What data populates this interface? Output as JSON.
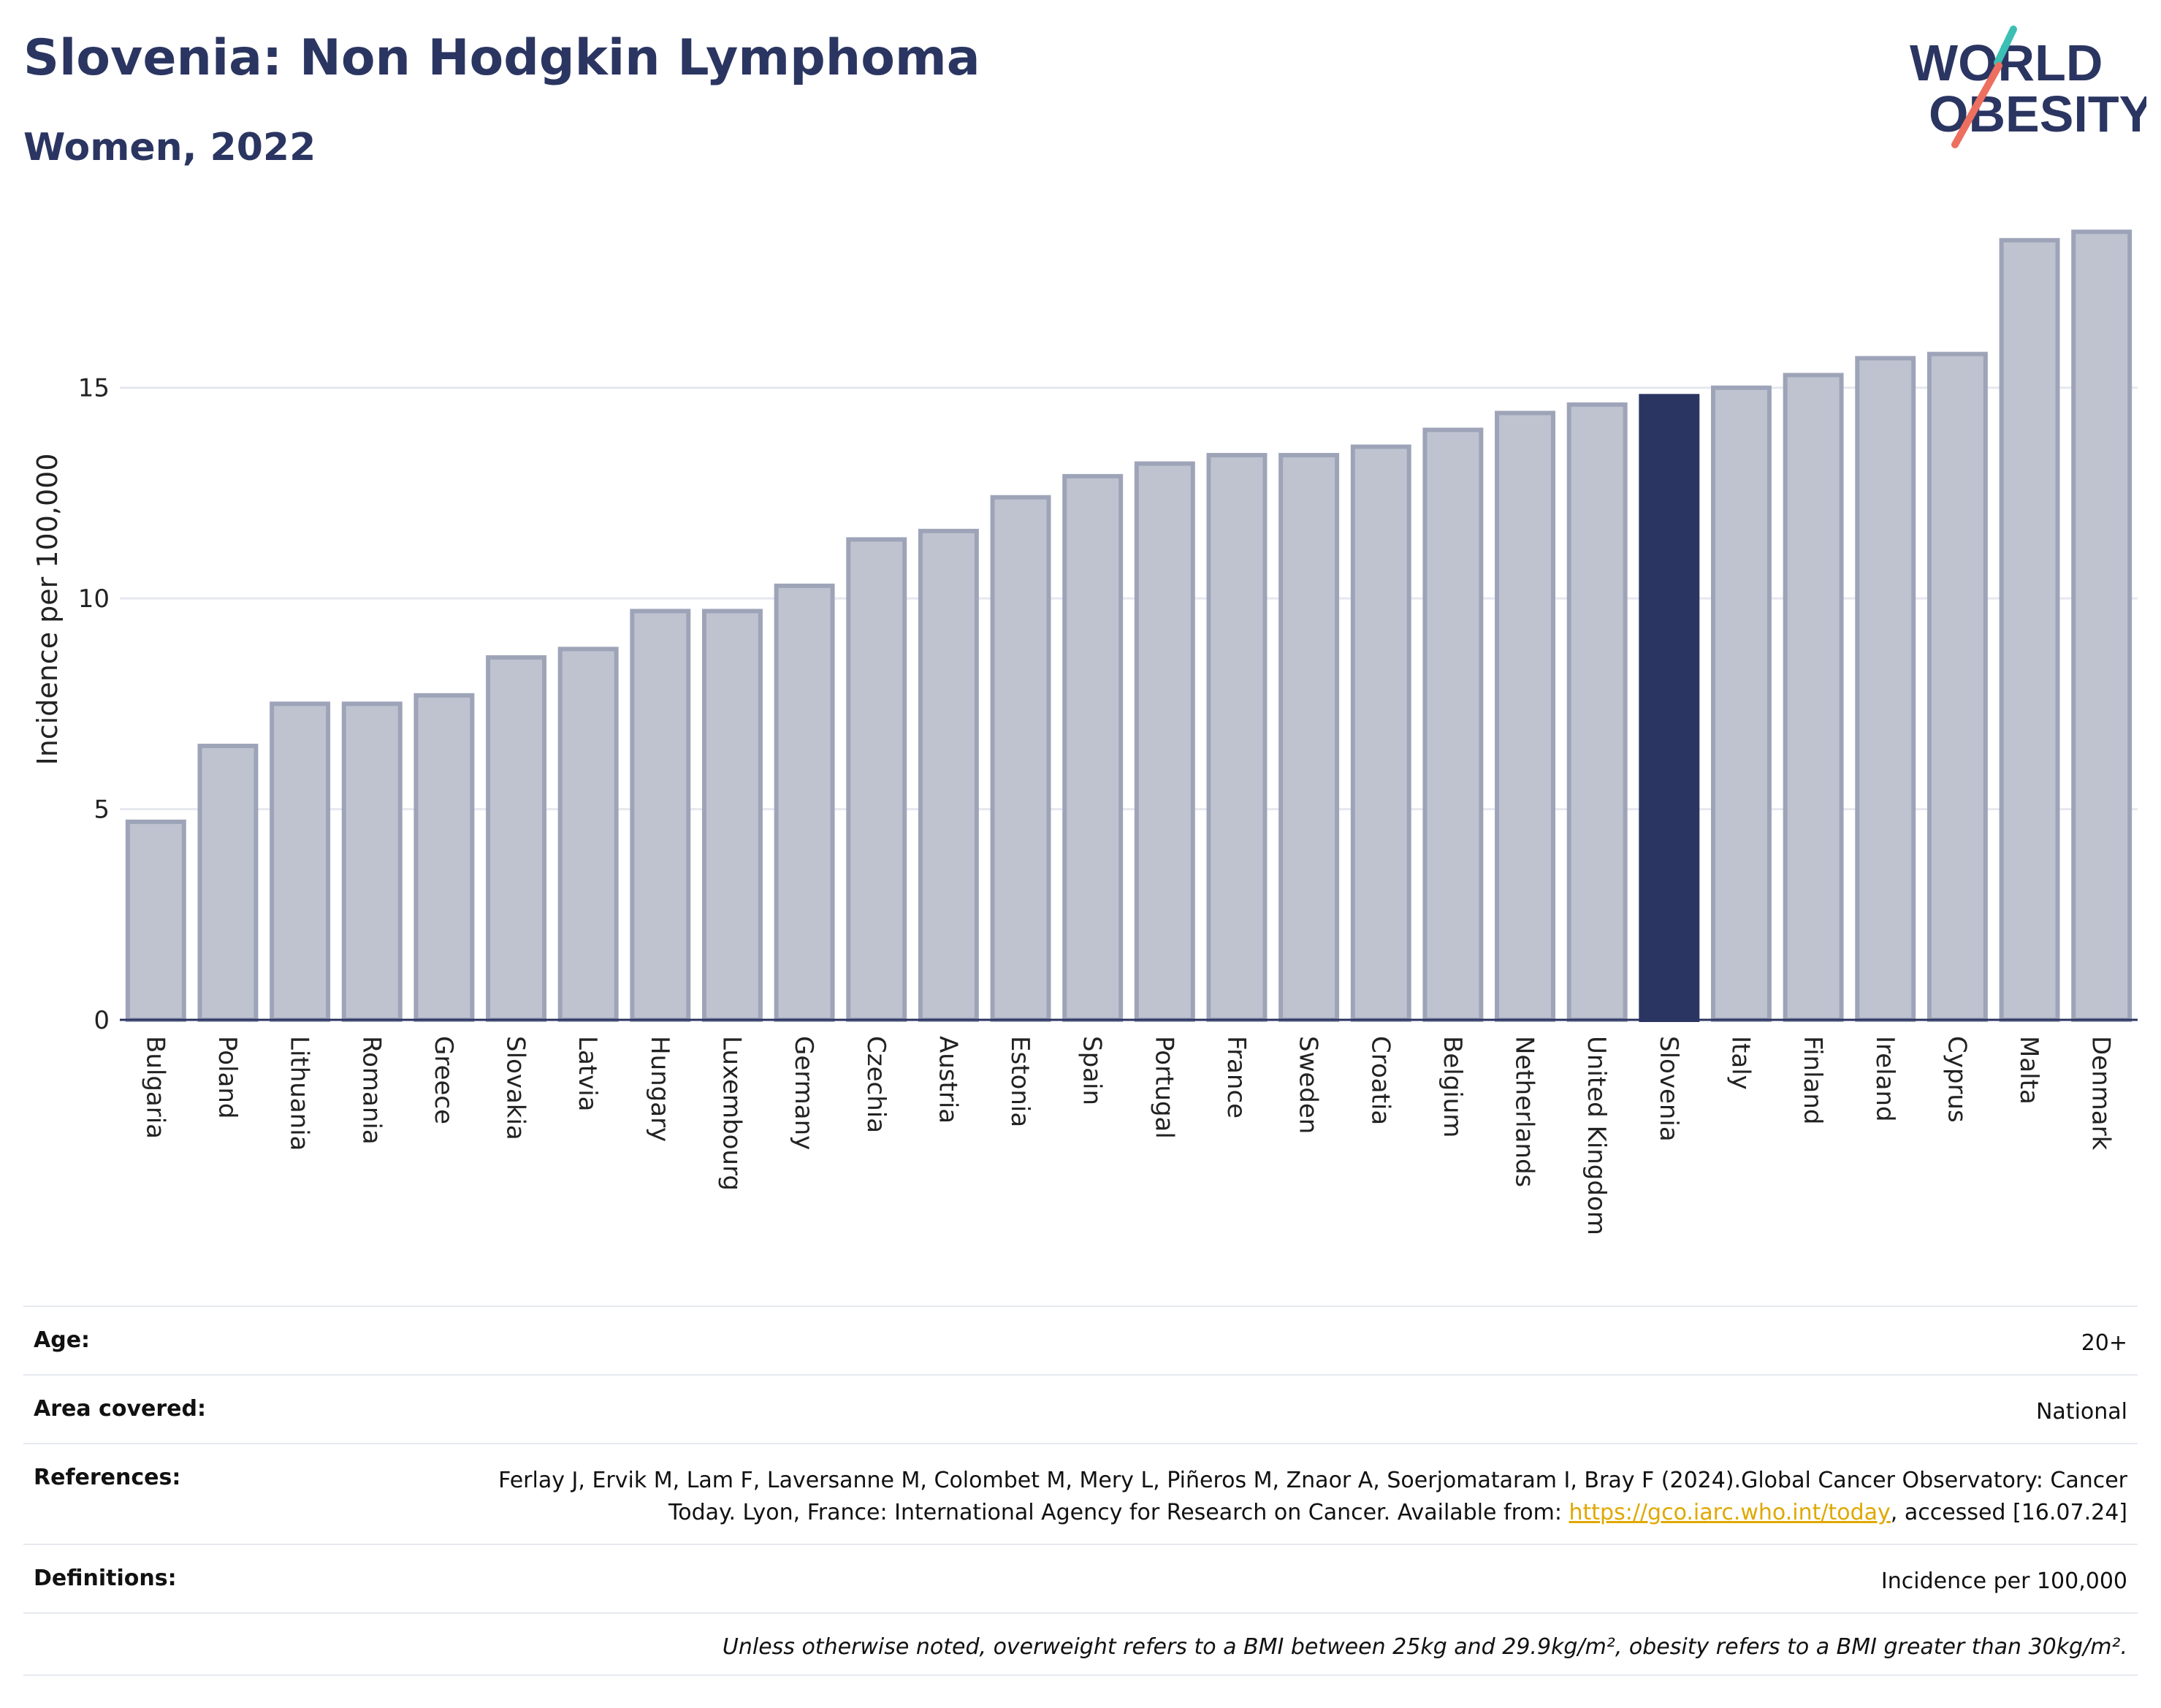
{
  "header": {
    "title": "Slovenia: Non Hodgkin Lymphoma",
    "subtitle": "Women, 2022"
  },
  "logo": {
    "line1": "WORLD",
    "line2": "OBESITY",
    "icon": "world-obesity-logo"
  },
  "colors": {
    "highlight": "#2b3561",
    "bar": "#bfc3d0",
    "bar_border": "#9ea4b8",
    "title": "#2b3561"
  },
  "chart_data": {
    "type": "bar",
    "categories": [
      "Bulgaria",
      "Poland",
      "Lithuania",
      "Romania",
      "Greece",
      "Slovakia",
      "Latvia",
      "Hungary",
      "Luxembourg",
      "Germany",
      "Czechia",
      "Austria",
      "Estonia",
      "Spain",
      "Portugal",
      "France",
      "Sweden",
      "Croatia",
      "Belgium",
      "Netherlands",
      "United Kingdom",
      "Slovenia",
      "Italy",
      "Finland",
      "Ireland",
      "Cyprus",
      "Malta",
      "Denmark"
    ],
    "values": [
      4.7,
      6.5,
      7.5,
      7.5,
      7.7,
      8.6,
      8.8,
      9.7,
      9.7,
      10.3,
      11.4,
      11.6,
      12.4,
      12.9,
      13.2,
      13.4,
      13.4,
      13.6,
      14.0,
      14.4,
      14.6,
      14.8,
      15.0,
      15.3,
      15.7,
      15.8,
      18.5,
      18.7
    ],
    "highlight": "Slovenia",
    "ylabel": "Incidence per 100,000",
    "ylim": [
      0,
      19.0
    ],
    "yticks": [
      0,
      5,
      10,
      15
    ],
    "grid": true
  },
  "info": {
    "age_label": "Age:",
    "age_value": "20+",
    "area_label": "Area covered:",
    "area_value": "National",
    "references_label": "References:",
    "references_text1": "Ferlay J, Ervik M, Lam F, Laversanne M, Colombet M, Mery L, Piñeros M, Znaor A, Soerjomataram I, Bray F (2024).Global Cancer Observatory: Cancer Today. Lyon, France: International Agency for Research on Cancer. Available from: ",
    "references_link": "https://gco.iarc.who.int/today",
    "references_text2": ", accessed [16.07.24]",
    "definitions_label": "Definitions:",
    "definitions_value": "Incidence per 100,000",
    "note": "Unless otherwise noted, overweight refers to a BMI between 25kg and 29.9kg/m², obesity refers to a BMI greater than 30kg/m²."
  }
}
